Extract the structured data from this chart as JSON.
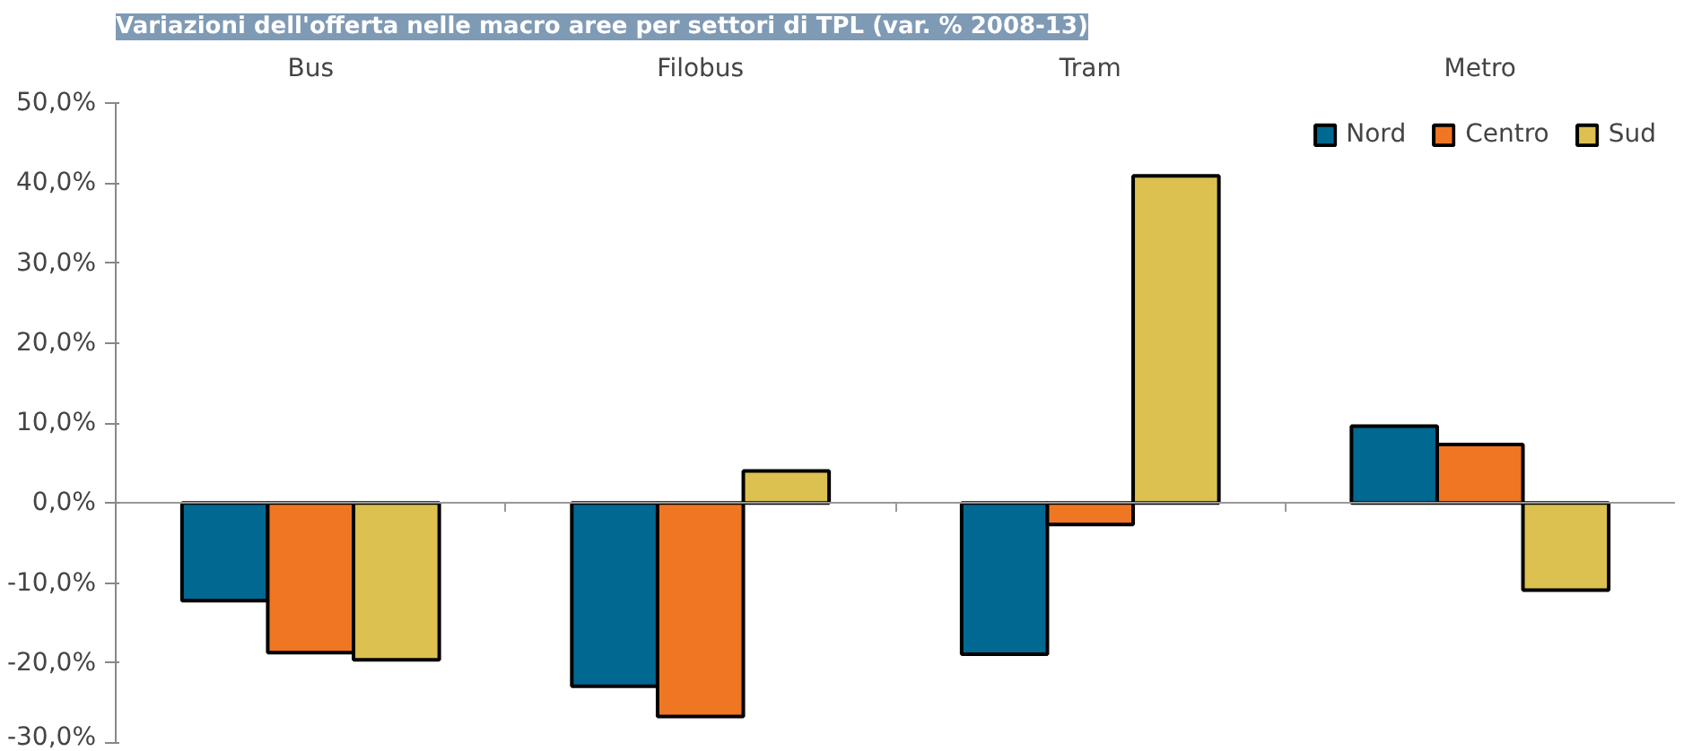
{
  "chart_data": {
    "type": "bar",
    "title": "Variazioni dell'offerta nelle macro aree per settori di TPL (var. % 2008-13)",
    "categories": [
      "Bus",
      "Filobus",
      "Tram",
      "Metro"
    ],
    "series": [
      {
        "name": "Nord",
        "color": "#006891",
        "values": [
          -12.2,
          -22.9,
          -18.9,
          9.6
        ]
      },
      {
        "name": "Centro",
        "color": "#ef7622",
        "values": [
          -18.7,
          -26.7,
          -2.7,
          7.3
        ]
      },
      {
        "name": "Sud",
        "color": "#dcc050",
        "values": [
          -19.6,
          4.0,
          40.9,
          -10.9
        ]
      }
    ],
    "ylim": [
      -30,
      50
    ],
    "yticks": [
      {
        "value": -30,
        "label": "-30,0%"
      },
      {
        "value": -20,
        "label": "-20,0%"
      },
      {
        "value": -10,
        "label": "-10,0%"
      },
      {
        "value": 0,
        "label": "0,0%"
      },
      {
        "value": 10,
        "label": "10,0%"
      },
      {
        "value": 20,
        "label": "20,0%"
      },
      {
        "value": 30,
        "label": "30,0%"
      },
      {
        "value": 40,
        "label": "40,0%"
      },
      {
        "value": 50,
        "label": "50,0%"
      }
    ],
    "legend": "top right"
  }
}
